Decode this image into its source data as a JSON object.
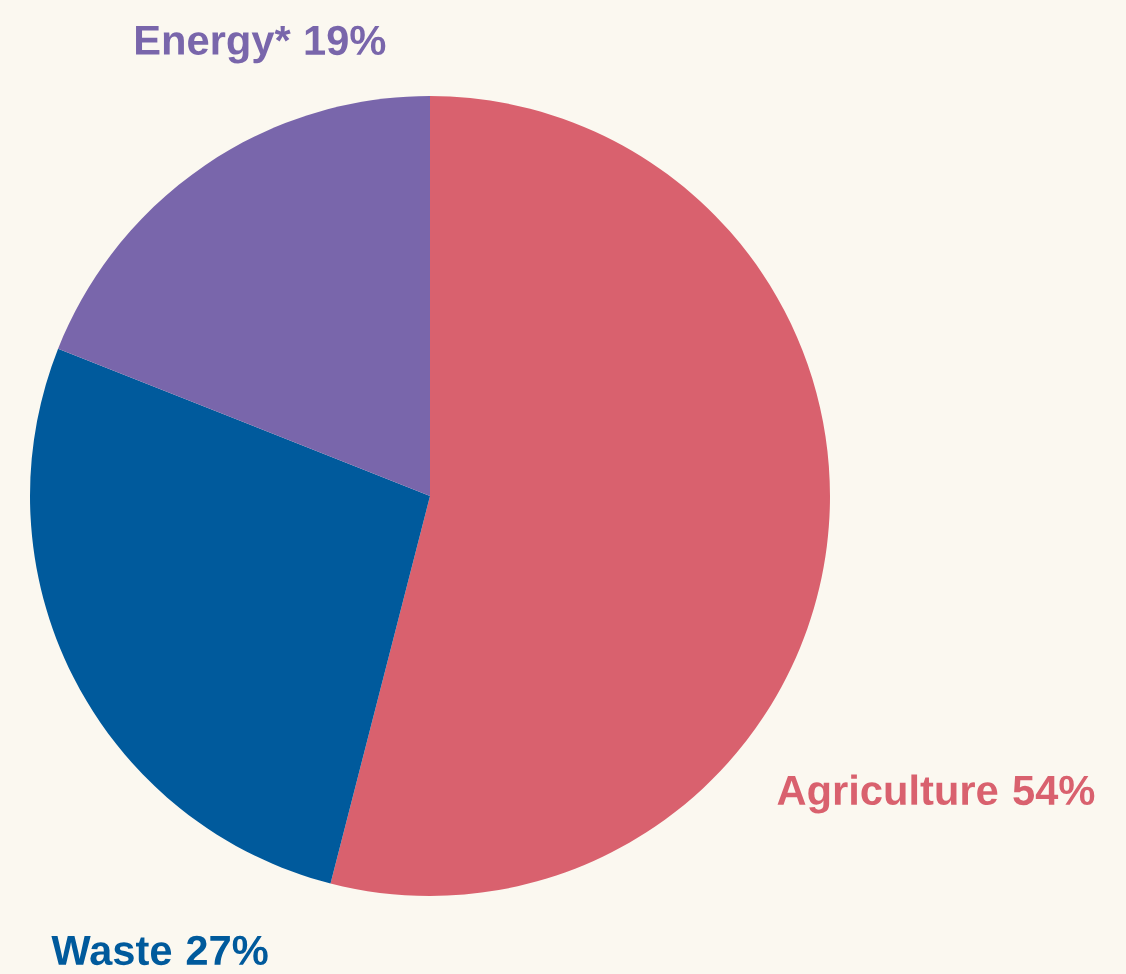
{
  "chart_data": {
    "type": "pie",
    "categories": [
      "Agriculture",
      "Waste",
      "Energy*"
    ],
    "values": [
      54,
      27,
      19
    ],
    "colors": [
      "#d9616e",
      "#005a9c",
      "#7966ab"
    ],
    "value_labels": [
      "54%",
      "27%",
      "19%"
    ]
  }
}
